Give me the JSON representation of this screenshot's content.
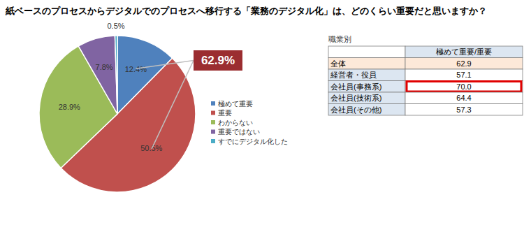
{
  "chart_data": {
    "type": "pie",
    "title": "紙ベースのプロセスからデジタルでのプロセスへ移行する「業務のデジタル化」は、どのくらい重要だと思いますか？",
    "categories": [
      "極めて重要",
      "重要",
      "わからない",
      "重要ではない",
      "すでにデジタル化した"
    ],
    "values": [
      12.4,
      50.5,
      28.9,
      7.8,
      0.5
    ],
    "value_labels": [
      "12.4%",
      "50.5%",
      "28.9%",
      "7.8%",
      "0.5%"
    ],
    "colors": [
      "#4f81bd",
      "#c0504d",
      "#9bbb59",
      "#8064a2",
      "#4bacc6"
    ],
    "data_labels": true,
    "legend": "right",
    "annotation": "62.9%"
  },
  "table": {
    "caption": "職業別",
    "header": "極めて重要/重要",
    "rows": [
      [
        "全体",
        "62.9"
      ],
      [
        "経営者・役員",
        "57.1"
      ],
      [
        "会社員(事務系)",
        "70.0"
      ],
      [
        "会社員(技術系)",
        "64.4"
      ],
      [
        "会社員(その他)",
        "57.3"
      ]
    ],
    "highlight_row": 2
  }
}
